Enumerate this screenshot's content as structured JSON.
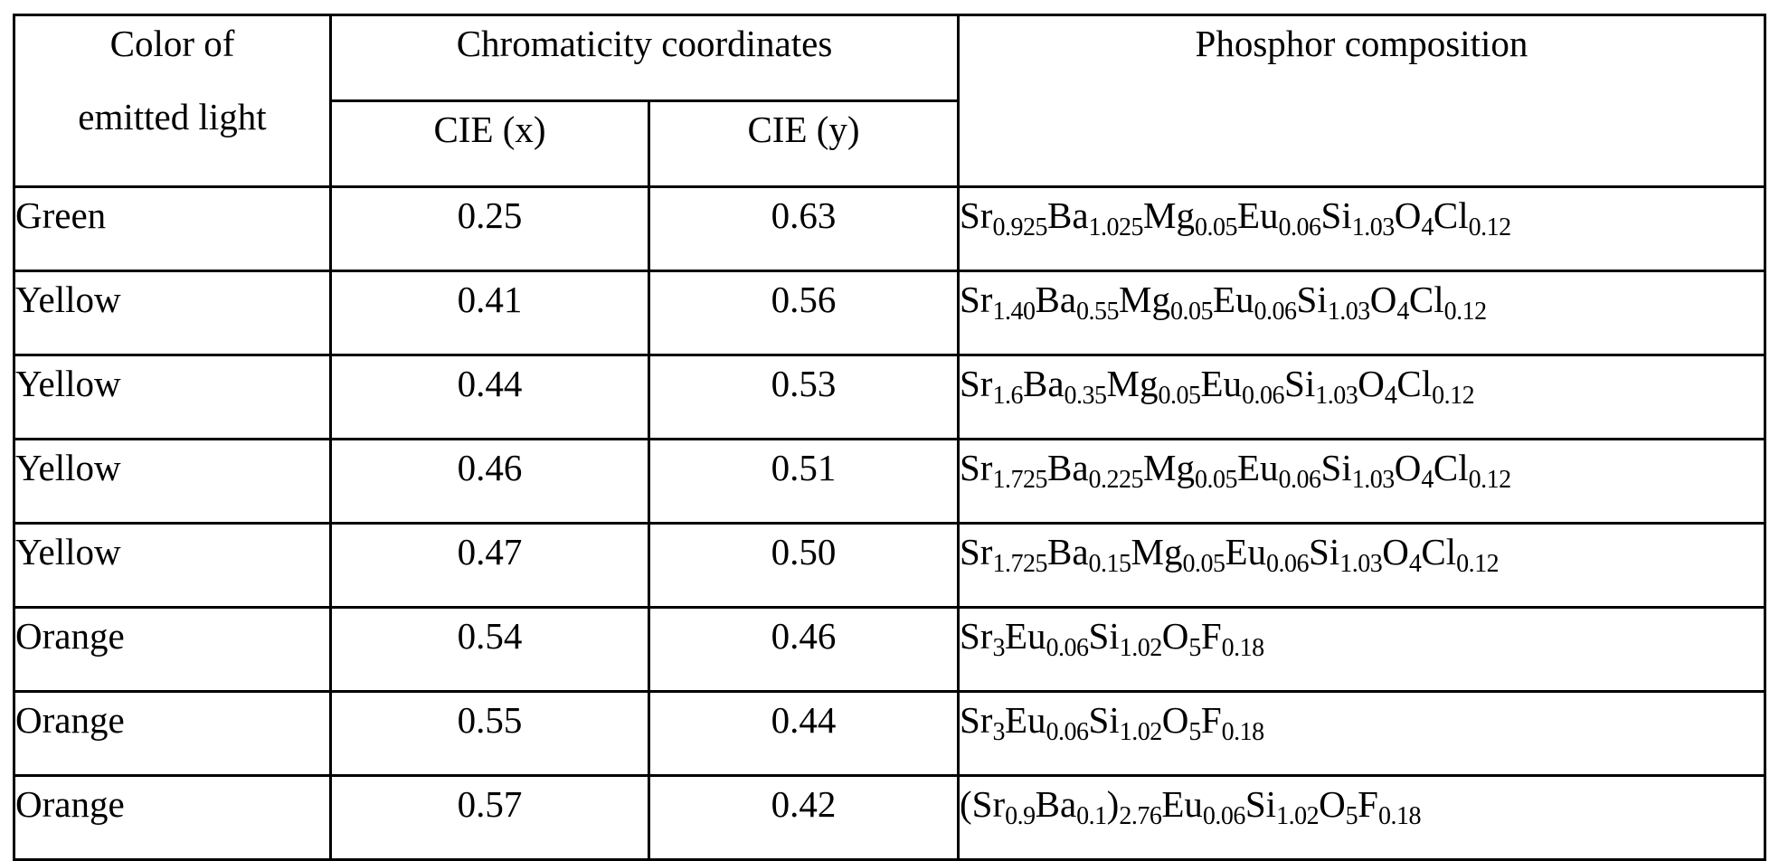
{
  "table": {
    "headers": {
      "color_line1": "Color of",
      "color_line2": "emitted light",
      "chromaticity": "Chromaticity coordinates",
      "cie_x": "CIE (x)",
      "cie_y": "CIE (y)",
      "composition": "Phosphor composition"
    },
    "rows": [
      {
        "color": "Green",
        "x": "0.25",
        "y": "0.63",
        "composition": [
          [
            "Sr",
            "0.925"
          ],
          [
            "Ba",
            "1.025"
          ],
          [
            "Mg",
            "0.05"
          ],
          [
            "Eu",
            "0.06"
          ],
          [
            "Si",
            "1.03"
          ],
          [
            "O",
            "4"
          ],
          [
            "Cl",
            "0.12"
          ]
        ]
      },
      {
        "color": "Yellow",
        "x": "0.41",
        "y": "0.56",
        "composition": [
          [
            "Sr",
            "1.40"
          ],
          [
            "Ba",
            "0.55"
          ],
          [
            "Mg",
            "0.05"
          ],
          [
            "Eu",
            "0.06"
          ],
          [
            "Si",
            "1.03"
          ],
          [
            "O",
            "4"
          ],
          [
            "Cl",
            "0.12"
          ]
        ]
      },
      {
        "color": "Yellow",
        "x": "0.44",
        "y": "0.53",
        "composition": [
          [
            "Sr",
            "1.6"
          ],
          [
            "Ba",
            "0.35"
          ],
          [
            "Mg",
            "0.05"
          ],
          [
            "Eu",
            "0.06"
          ],
          [
            "Si",
            "1.03"
          ],
          [
            "O",
            "4"
          ],
          [
            "Cl",
            "0.12"
          ]
        ]
      },
      {
        "color": "Yellow",
        "x": "0.46",
        "y": "0.51",
        "composition": [
          [
            "Sr",
            "1.725"
          ],
          [
            "Ba",
            "0.225"
          ],
          [
            "Mg",
            "0.05"
          ],
          [
            "Eu",
            "0.06"
          ],
          [
            "Si",
            "1.03"
          ],
          [
            "O",
            "4"
          ],
          [
            "Cl",
            "0.12"
          ]
        ]
      },
      {
        "color": "Yellow",
        "x": "0.47",
        "y": "0.50",
        "composition": [
          [
            "Sr",
            "1.725"
          ],
          [
            "Ba",
            "0.15"
          ],
          [
            "Mg",
            "0.05"
          ],
          [
            "Eu",
            "0.06"
          ],
          [
            "Si",
            "1.03"
          ],
          [
            "O",
            "4"
          ],
          [
            "Cl",
            "0.12"
          ]
        ]
      },
      {
        "color": "Orange",
        "x": "0.54",
        "y": "0.46",
        "composition": [
          [
            "Sr",
            "3"
          ],
          [
            "Eu",
            "0.06"
          ],
          [
            "Si",
            "1.02"
          ],
          [
            "O",
            "5"
          ],
          [
            "F",
            "0.18"
          ]
        ]
      },
      {
        "color": "Orange",
        "x": "0.55",
        "y": "0.44",
        "composition": [
          [
            "Sr",
            "3"
          ],
          [
            "Eu",
            "0.06"
          ],
          [
            "Si",
            "1.02"
          ],
          [
            "O",
            "5"
          ],
          [
            "F",
            "0.18"
          ]
        ]
      },
      {
        "color": "Orange",
        "x": "0.57",
        "y": "0.42",
        "composition": [
          [
            "(Sr",
            "0.9"
          ],
          [
            "Ba",
            "0.1"
          ],
          [
            ")",
            "2.76"
          ],
          [
            "Eu",
            "0.06"
          ],
          [
            "Si",
            "1.02"
          ],
          [
            "O",
            "5"
          ],
          [
            "F",
            "0.18"
          ]
        ]
      }
    ]
  }
}
